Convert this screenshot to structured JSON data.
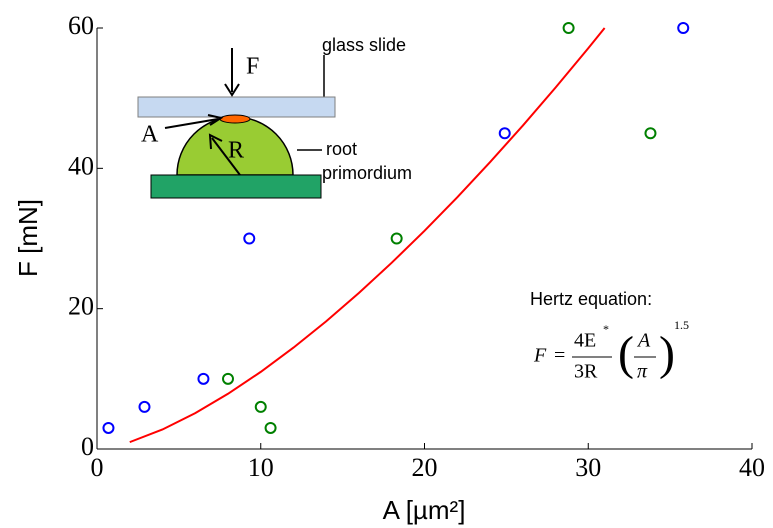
{
  "chart_data": {
    "type": "scatter",
    "xlabel": "A [µm²]",
    "ylabel": "F [mN]",
    "xlim": [
      0,
      40
    ],
    "ylim": [
      0,
      60
    ],
    "xticks": [
      0,
      10,
      20,
      30,
      40
    ],
    "yticks": [
      0,
      20,
      40,
      60
    ],
    "series": [
      {
        "color": "#0000ff",
        "x": [
          0.7,
          2.9,
          6.5,
          9.3,
          24.9,
          35.8
        ],
        "values": [
          3,
          6,
          10,
          30,
          45,
          60
        ]
      },
      {
        "color": "#008000",
        "x": [
          8.0,
          10.0,
          10.6,
          18.3,
          28.8,
          33.8
        ],
        "values": [
          10,
          6,
          3,
          30,
          60,
          45
        ]
      },
      {
        "type": "line",
        "color": "#ff0000",
        "x": [
          2,
          4,
          6,
          8,
          10,
          12,
          14,
          16,
          18,
          20,
          22,
          24,
          26,
          28,
          30,
          31
        ],
        "values": [
          0.98,
          2.78,
          5.11,
          7.87,
          10.99,
          14.45,
          18.21,
          22.25,
          26.55,
          31.09,
          35.87,
          40.87,
          46.08,
          51.5,
          57.11,
          60
        ]
      }
    ],
    "annotations": {
      "glass_slide": "glass slide",
      "force": "F",
      "area": "A",
      "radius": "R",
      "root": "root",
      "primordium": "primordium",
      "hertz": "Hertz equation:",
      "eq_lhs": "F",
      "eq_equals": "=",
      "eq_num": "4E",
      "eq_star": "*",
      "eq_den": "3R",
      "eq_inner_num": "A",
      "eq_inner_den": "π",
      "eq_exp": "1.5"
    }
  }
}
